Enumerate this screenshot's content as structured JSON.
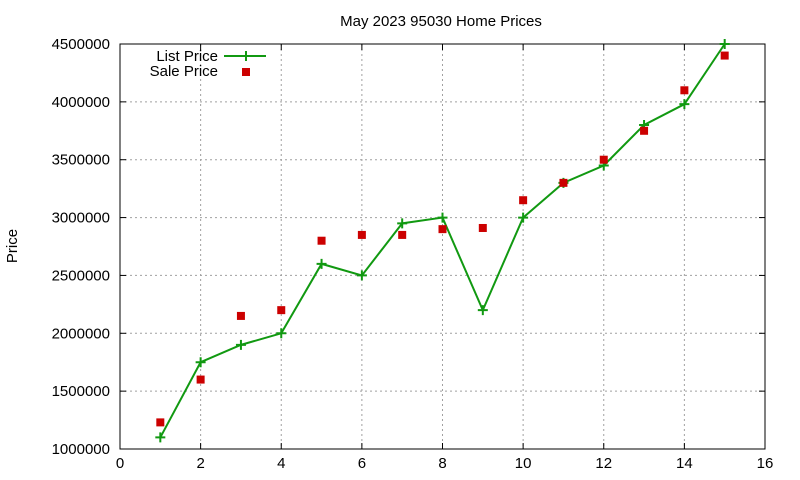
{
  "chart_data": {
    "type": "line",
    "title": "May 2023 95030 Home Prices",
    "xlabel": "",
    "ylabel": "Price",
    "xlim": [
      0,
      16
    ],
    "ylim": [
      1000000,
      4500000
    ],
    "x_ticks": [
      0,
      2,
      4,
      6,
      8,
      10,
      12,
      14,
      16
    ],
    "y_ticks": [
      1000000,
      1500000,
      2000000,
      2500000,
      3000000,
      3500000,
      4000000,
      4500000
    ],
    "grid": true,
    "legend_position": "top-left",
    "series": [
      {
        "name": "List Price",
        "style": "line+plus",
        "color": "#119911",
        "x": [
          1,
          2,
          3,
          4,
          5,
          6,
          7,
          8,
          9,
          10,
          11,
          12,
          13,
          14,
          15
        ],
        "y": [
          1100000,
          1750000,
          1900000,
          2000000,
          2600000,
          2500000,
          2950000,
          3000000,
          2200000,
          3000000,
          3300000,
          3450000,
          3800000,
          3980000,
          4500000
        ]
      },
      {
        "name": "Sale Price",
        "style": "square-points",
        "color": "#cc0000",
        "x": [
          1,
          2,
          3,
          4,
          5,
          6,
          7,
          8,
          9,
          10,
          11,
          12,
          13,
          14,
          15
        ],
        "y": [
          1230000,
          1600000,
          2150000,
          2200000,
          2800000,
          2850000,
          2850000,
          2900000,
          2910000,
          3150000,
          3300000,
          3500000,
          3750000,
          4100000,
          4400000
        ]
      }
    ]
  }
}
